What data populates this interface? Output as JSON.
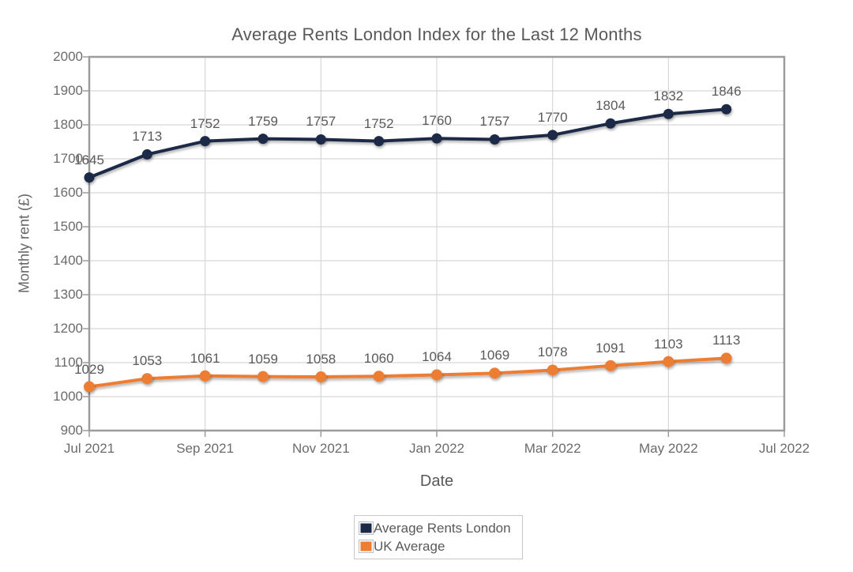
{
  "title": "Average Rents London Index for the Last 12 Months",
  "chart_data": {
    "type": "line",
    "title": "Average Rents London Index for the Last 12 Months",
    "xlabel": "Date",
    "ylabel": "Monthly rent (£)",
    "categories": [
      "Jul 2021",
      "Aug 2021",
      "Sep 2021",
      "Oct 2021",
      "Nov 2021",
      "Dec 2021",
      "Jan 2022",
      "Feb 2022",
      "Mar 2022",
      "Apr 2022",
      "May 2022",
      "Jun 2022"
    ],
    "x_tick_labels": [
      "Jul 2021",
      "Sep 2021",
      "Nov 2021",
      "Jan 2022",
      "Mar 2022",
      "May 2022",
      "Jul 2022"
    ],
    "ylim": [
      900,
      2000
    ],
    "y_tick_step": 100,
    "grid": true,
    "legend_position": "bottom",
    "series": [
      {
        "name": "Average Rents London",
        "color": "#1b2a47",
        "values": [
          1645,
          1713,
          1752,
          1759,
          1757,
          1752,
          1760,
          1757,
          1770,
          1804,
          1832,
          1846
        ]
      },
      {
        "name": "UK Average",
        "color": "#ed7d31",
        "values": [
          1029,
          1053,
          1061,
          1059,
          1058,
          1060,
          1064,
          1069,
          1078,
          1091,
          1103,
          1113
        ]
      }
    ]
  },
  "colors": {
    "grid": "#d8d8d8",
    "plot_border": "#9c9c9c",
    "tick_text": "#6b6b6b",
    "label_text": "#595959"
  }
}
